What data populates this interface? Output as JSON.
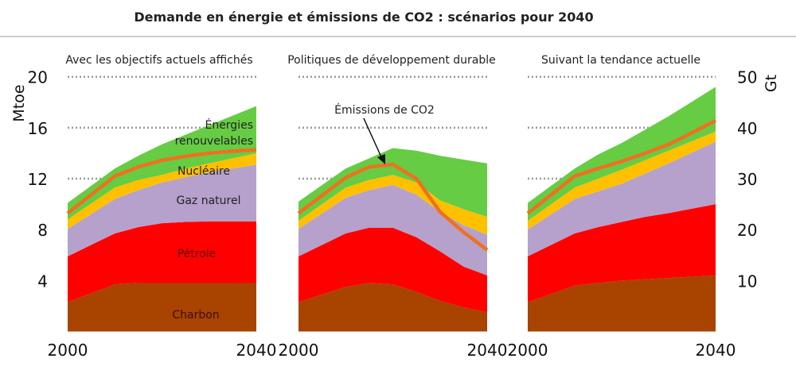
{
  "chart_data": {
    "type": "area",
    "title": "Demande en énergie et émissions de CO2 : scénarios pour 2040",
    "ylabel_left": "Mtoe",
    "ylabel_right": "Gt",
    "ylim_left": [
      0,
      20
    ],
    "ylim_right": [
      0,
      50
    ],
    "yticks_left": [
      "4",
      "8",
      "12",
      "16",
      "20"
    ],
    "yticks_right": [
      "10",
      "20",
      "30",
      "40",
      "50"
    ],
    "xlim": [
      2000,
      2040
    ],
    "xtick_labels": [
      "2000",
      "2040"
    ],
    "grid": true,
    "x": [
      2000,
      2010,
      2015,
      2020,
      2025,
      2030,
      2035,
      2040
    ],
    "colors": {
      "Charbon": "#A84300",
      "Pétrole": "#FF0000",
      "Gaz naturel": "#B5A1CC",
      "Nucléaire": "#FFC000",
      "Énergies renouvelables": "#66CC44",
      "co2_line": "#F07020"
    },
    "series_labels": {
      "renew_line1": "Énergies",
      "renew_line2": "renouvelables",
      "nuclear": "Nucléaire",
      "gas": "Gaz naturel",
      "oil": "Pétrole",
      "coal": "Charbon"
    },
    "annotation": "Émissions de CO2",
    "panels": [
      {
        "title": "Avec les objectifs actuels affichés",
        "stack_unit": "Mtoe",
        "series": [
          {
            "name": "Charbon",
            "values": [
              2.3,
              3.7,
              3.8,
              3.8,
              3.8,
              3.8,
              3.8,
              3.8
            ]
          },
          {
            "name": "Pétrole",
            "values": [
              3.6,
              4.0,
              4.4,
              4.7,
              4.8,
              4.85,
              4.85,
              4.85
            ]
          },
          {
            "name": "Gaz naturel",
            "values": [
              2.15,
              2.7,
              2.9,
              3.2,
              3.5,
              3.85,
              4.15,
              4.45
            ]
          },
          {
            "name": "Nucléaire",
            "values": [
              0.75,
              0.9,
              0.8,
              0.6,
              0.7,
              0.7,
              0.8,
              0.9
            ]
          },
          {
            "name": "Énergies renouvelables",
            "values": [
              1.3,
              1.5,
              1.9,
              2.4,
              2.65,
              3.0,
              3.35,
              3.7
            ]
          }
        ],
        "co2_gt": [
          23.2,
          30.5,
          32.3,
          33.6,
          34.4,
          35.0,
          35.4,
          35.7
        ]
      },
      {
        "title": "Politiques de développement durable",
        "stack_unit": "Mtoe",
        "series": [
          {
            "name": "Charbon",
            "values": [
              2.3,
              3.5,
              3.8,
              3.7,
              3.1,
              2.4,
              1.9,
              1.5
            ]
          },
          {
            "name": "Pétrole",
            "values": [
              3.6,
              4.2,
              4.35,
              4.45,
              4.3,
              3.9,
              3.2,
              2.9
            ]
          },
          {
            "name": "Gaz naturel",
            "values": [
              2.15,
              2.8,
              2.95,
              3.35,
              3.35,
              3.1,
              3.25,
              3.2
            ]
          },
          {
            "name": "Nucléaire",
            "values": [
              0.65,
              0.8,
              0.8,
              0.8,
              0.95,
              0.9,
              1.25,
              1.4
            ]
          },
          {
            "name": "Énergies renouvelables",
            "values": [
              1.5,
              1.5,
              1.7,
              2.1,
              2.5,
              3.5,
              3.9,
              4.2
            ]
          }
        ],
        "co2_gt": [
          23.2,
          30.2,
          32.3,
          32.8,
          30.0,
          23.5,
          19.5,
          16.0
        ]
      },
      {
        "title": "Suivant la tendance actuelle",
        "stack_unit": "Mtoe",
        "series": [
          {
            "name": "Charbon",
            "values": [
              2.3,
              3.6,
              3.8,
              4.0,
              4.1,
              4.2,
              4.3,
              4.4
            ]
          },
          {
            "name": "Pétrole",
            "values": [
              3.6,
              4.1,
              4.4,
              4.6,
              4.9,
              5.1,
              5.35,
              5.6
            ]
          },
          {
            "name": "Gaz naturel",
            "values": [
              2.1,
              2.7,
              2.8,
              3.0,
              3.4,
              3.9,
              4.4,
              4.9
            ]
          },
          {
            "name": "Nucléaire",
            "values": [
              0.7,
              0.9,
              1.0,
              1.1,
              1.05,
              1.0,
              0.9,
              0.8
            ]
          },
          {
            "name": "Énergies renouvelables",
            "values": [
              1.4,
              1.5,
              1.9,
              2.1,
              2.4,
              2.7,
              3.1,
              3.5
            ]
          }
        ],
        "co2_gt": [
          23.2,
          30.5,
          32.0,
          33.4,
          35.0,
          36.7,
          39.0,
          41.4
        ]
      }
    ]
  }
}
